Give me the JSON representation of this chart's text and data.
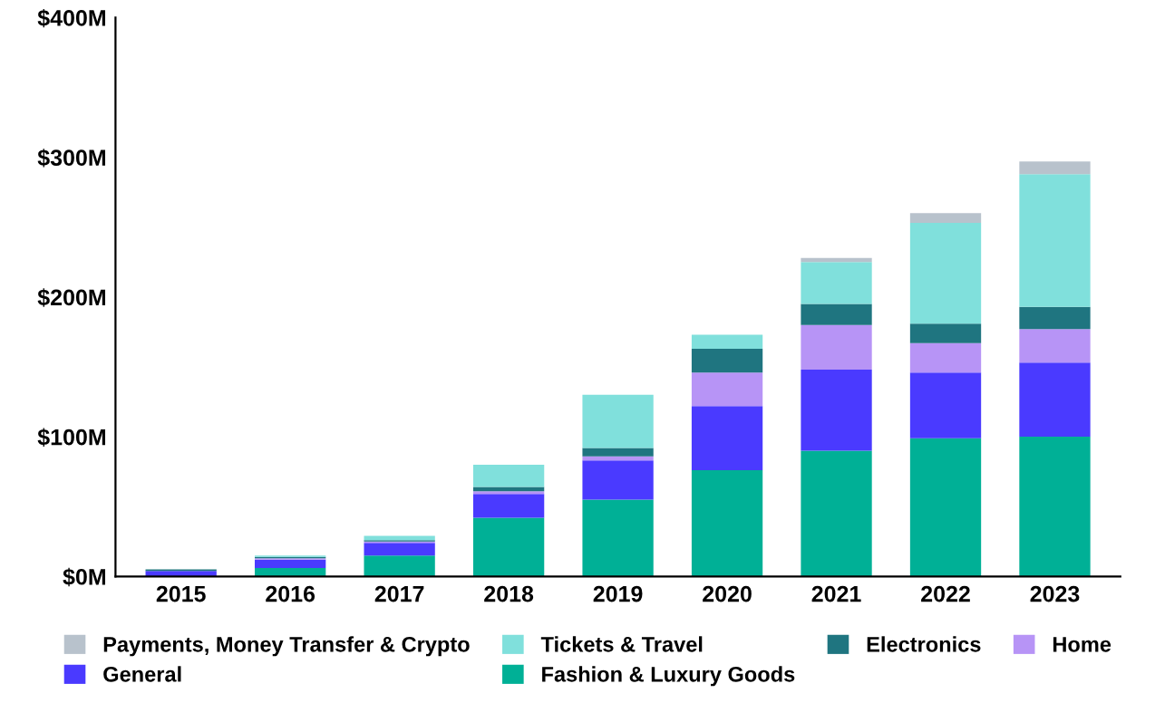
{
  "chart_data": {
    "type": "bar",
    "stacked": true,
    "categories": [
      "2015",
      "2016",
      "2017",
      "2018",
      "2019",
      "2020",
      "2021",
      "2022",
      "2023"
    ],
    "series": [
      {
        "name": "Fashion & Luxury Goods",
        "color": "#00b096",
        "values": [
          null,
          6,
          15,
          42,
          55,
          76,
          90,
          99,
          100
        ]
      },
      {
        "name": "General",
        "color": "#4a3aff",
        "values": [
          4,
          6,
          9,
          17,
          28,
          46,
          58,
          47,
          53
        ]
      },
      {
        "name": "Home",
        "color": "#b794f6",
        "values": [
          0,
          1,
          1,
          2,
          3,
          24,
          32,
          21,
          24
        ]
      },
      {
        "name": "Electronics",
        "color": "#1f7580",
        "values": [
          1,
          1,
          1,
          3,
          6,
          17,
          15,
          14,
          16
        ]
      },
      {
        "name": "Tickets & Travel",
        "color": "#80e0dc",
        "values": [
          0,
          1,
          3,
          16,
          38,
          10,
          30,
          72,
          95
        ]
      },
      {
        "name": "Payments, Money Transfer & Crypto",
        "color": "#b8c2cc",
        "values": [
          0,
          0,
          0,
          0,
          0,
          0,
          3,
          7,
          9
        ]
      }
    ],
    "ylim": [
      0,
      400
    ],
    "yticks": [
      {
        "value": 0,
        "label": "$0M"
      },
      {
        "value": 100,
        "label": "$100M"
      },
      {
        "value": 200,
        "label": "$200M"
      },
      {
        "value": 300,
        "label": "$300M"
      },
      {
        "value": 400,
        "label": "$400M"
      }
    ],
    "legend": "bottom",
    "grid": false
  }
}
